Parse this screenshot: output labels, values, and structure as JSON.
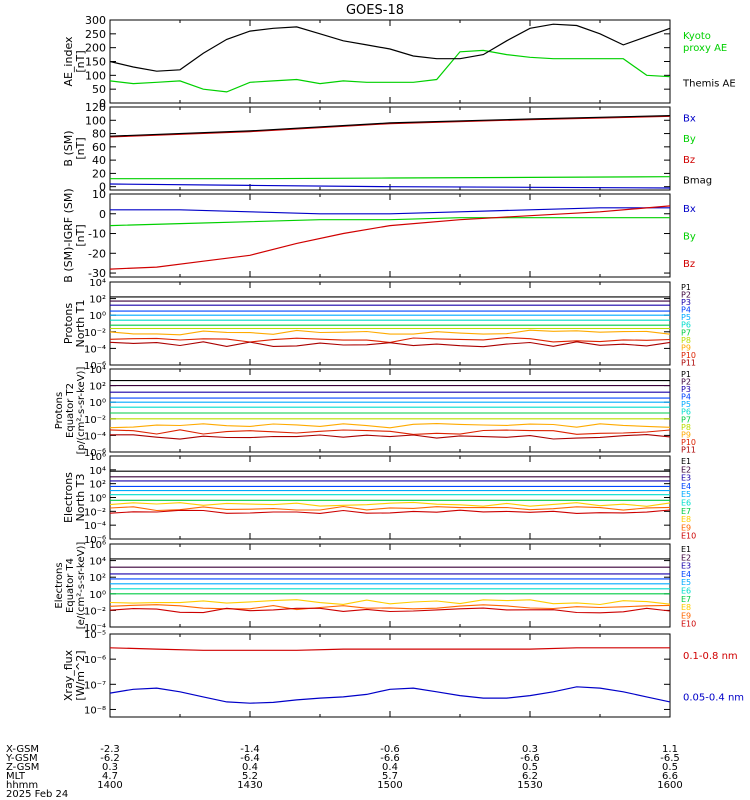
{
  "title": "GOES-18",
  "chart_data": [
    {
      "type": "line",
      "panel": "ae",
      "ylabel": [
        "AE_index",
        "[nT]"
      ],
      "ylim": [
        0,
        300
      ],
      "yticks": [
        0,
        50,
        100,
        150,
        200,
        250,
        300
      ],
      "log": false,
      "series": [
        {
          "name": "Kyoto proxy AE",
          "label_lines": [
            "Kyoto",
            "proxy AE"
          ],
          "color": "#00d000",
          "x": [
            0,
            5,
            10,
            15,
            20,
            25,
            30,
            35,
            40,
            45,
            50,
            55,
            60,
            65,
            70,
            75,
            80,
            85,
            90,
            95,
            100,
            105,
            110,
            115,
            120
          ],
          "y": [
            80,
            70,
            75,
            80,
            50,
            40,
            75,
            80,
            85,
            70,
            80,
            75,
            75,
            75,
            85,
            185,
            190,
            175,
            165,
            160,
            160,
            160,
            160,
            100,
            95
          ]
        },
        {
          "name": "Themis AE",
          "label_lines": [
            "Themis AE"
          ],
          "color": "#000000",
          "x": [
            0,
            5,
            10,
            15,
            20,
            25,
            30,
            35,
            40,
            45,
            50,
            55,
            60,
            65,
            70,
            75,
            80,
            85,
            90,
            95,
            100,
            105,
            110,
            115,
            120
          ],
          "y": [
            150,
            130,
            115,
            120,
            180,
            230,
            260,
            270,
            275,
            250,
            225,
            210,
            195,
            170,
            160,
            160,
            175,
            225,
            270,
            285,
            280,
            250,
            210,
            240,
            270
          ]
        }
      ]
    },
    {
      "type": "line",
      "panel": "b-sm",
      "ylabel": [
        "B (SM)",
        "[nT]"
      ],
      "ylim": [
        -5,
        120
      ],
      "yticks": [
        0,
        20,
        40,
        60,
        80,
        100,
        120
      ],
      "log": false,
      "series": [
        {
          "name": "Bx",
          "color": "#0000c8",
          "x": [
            0,
            30,
            60,
            90,
            120
          ],
          "y": [
            4,
            2,
            0,
            -1,
            -2
          ]
        },
        {
          "name": "By",
          "color": "#00d000",
          "x": [
            0,
            30,
            60,
            90,
            120
          ],
          "y": [
            12,
            12,
            13,
            14,
            15
          ]
        },
        {
          "name": "Bz",
          "color": "#d00000",
          "x": [
            0,
            30,
            60,
            90,
            120
          ],
          "y": [
            75,
            83,
            95,
            101,
            106
          ]
        },
        {
          "name": "Bmag",
          "color": "#000000",
          "x": [
            0,
            30,
            60,
            90,
            120
          ],
          "y": [
            76,
            84,
            96,
            102,
            107
          ]
        }
      ]
    },
    {
      "type": "line",
      "panel": "b-igrf",
      "ylabel": [
        "B (SM)-IGRF (SM)",
        "[nT]"
      ],
      "ylim": [
        -32,
        10
      ],
      "yticks": [
        -30,
        -20,
        -10,
        0,
        10
      ],
      "log": false,
      "series": [
        {
          "name": "Bx",
          "color": "#0000c8",
          "x": [
            0,
            15,
            30,
            45,
            60,
            75,
            90,
            105,
            120
          ],
          "y": [
            2,
            2,
            1,
            0,
            0,
            1,
            2,
            3,
            3
          ]
        },
        {
          "name": "By",
          "color": "#00d000",
          "x": [
            0,
            15,
            30,
            45,
            60,
            75,
            90,
            105,
            120
          ],
          "y": [
            -6,
            -5,
            -4,
            -3,
            -3,
            -2,
            -2,
            -2,
            -2
          ]
        },
        {
          "name": "Bz",
          "color": "#d00000",
          "x": [
            0,
            10,
            20,
            30,
            40,
            50,
            60,
            75,
            90,
            105,
            120
          ],
          "y": [
            -28,
            -27,
            -24,
            -21,
            -15,
            -10,
            -6,
            -3,
            -1,
            1,
            4
          ]
        }
      ]
    },
    {
      "type": "line",
      "panel": "protons-t1",
      "ylabel": [
        "Protons",
        "North T1"
      ],
      "ylim": [
        -6,
        4
      ],
      "yticks": [
        -6,
        -4,
        -2,
        0,
        2,
        4
      ],
      "log": true,
      "channels": [
        "P1",
        "P2",
        "P3",
        "P4",
        "P5",
        "P6",
        "P7",
        "P8",
        "P9",
        "P10",
        "P11"
      ],
      "levels": [
        2.2,
        1.7,
        1.2,
        0.5,
        0.0,
        -0.6,
        -1.2,
        -1.6,
        -2.1,
        -3.0,
        -3.5
      ],
      "colors": [
        "#000000",
        "#3a003a",
        "#1a00aa",
        "#0044ff",
        "#00aaff",
        "#00ddcc",
        "#00cc44",
        "#bbdd00",
        "#ffaa00",
        "#dd2200",
        "#aa0000"
      ]
    },
    {
      "type": "line",
      "panel": "protons-t2",
      "ylabel": [
        "Protons",
        "Equator T2",
        "[p/(cm²-s-sr-keV)]"
      ],
      "ylim": [
        -6,
        4
      ],
      "yticks": [
        -6,
        -4,
        -2,
        0,
        2,
        4
      ],
      "log": true,
      "channels": [
        "P1",
        "P2",
        "P3",
        "P4",
        "P5",
        "P6",
        "P7",
        "P8",
        "P9",
        "P10",
        "P11"
      ],
      "levels": [
        2.6,
        2.0,
        1.2,
        0.5,
        0.0,
        -0.6,
        -1.3,
        -2.0,
        -2.8,
        -3.6,
        -4.2
      ],
      "colors": [
        "#000000",
        "#3a003a",
        "#1a00aa",
        "#0044ff",
        "#00aaff",
        "#00ddcc",
        "#00cc44",
        "#bbdd00",
        "#ffaa00",
        "#dd2200",
        "#aa0000"
      ]
    },
    {
      "type": "line",
      "panel": "electrons-t3",
      "ylabel": [
        "Electrons",
        "North T3"
      ],
      "ylim": [
        -6,
        6
      ],
      "yticks": [
        -6,
        -4,
        -2,
        0,
        2,
        4,
        6
      ],
      "log": true,
      "channels": [
        "E1",
        "E2",
        "E3",
        "E4",
        "E5",
        "E6",
        "E7",
        "E8",
        "E9",
        "E10"
      ],
      "levels": [
        3.8,
        3.0,
        2.4,
        1.6,
        1.0,
        0.4,
        -0.4,
        -1.0,
        -1.6,
        -2.0
      ],
      "colors": [
        "#000000",
        "#3a003a",
        "#1a00aa",
        "#0044ff",
        "#00aaff",
        "#00ddcc",
        "#00cc44",
        "#ffcc00",
        "#ff6600",
        "#cc0000"
      ]
    },
    {
      "type": "line",
      "panel": "electrons-t4",
      "ylabel": [
        "Electrons",
        "Equator T4",
        "[e/(cm²-s-sr-keV)]"
      ],
      "ylim": [
        -4,
        6
      ],
      "yticks": [
        -4,
        -2,
        0,
        2,
        4,
        6
      ],
      "log": true,
      "channels": [
        "E1",
        "E2",
        "E3",
        "E4",
        "E5",
        "E6",
        "E7",
        "E8",
        "E9",
        "E10"
      ],
      "levels": [
        4.2,
        3.2,
        2.4,
        1.8,
        1.2,
        0.6,
        0.0,
        -1.0,
        -1.6,
        -2.0
      ],
      "colors": [
        "#000000",
        "#3a003a",
        "#1a00aa",
        "#0044ff",
        "#00aaff",
        "#00ddcc",
        "#00cc44",
        "#ffcc00",
        "#ff6600",
        "#cc0000"
      ]
    },
    {
      "type": "line",
      "panel": "xray",
      "ylabel": [
        "Xray_flux",
        "[W/m^2]"
      ],
      "ylim": [
        -8.3,
        -5
      ],
      "yticks": [
        -8,
        -7,
        -6,
        -5
      ],
      "log": true,
      "series": [
        {
          "name": "0.1-0.8 nm",
          "color": "#d00000",
          "x": [
            0,
            10,
            20,
            30,
            40,
            50,
            60,
            70,
            80,
            90,
            100,
            110,
            120
          ],
          "y": [
            -5.55,
            -5.6,
            -5.65,
            -5.65,
            -5.65,
            -5.6,
            -5.6,
            -5.6,
            -5.6,
            -5.6,
            -5.55,
            -5.55,
            -5.55
          ]
        },
        {
          "name": "0.05-0.4 nm",
          "color": "#0000c8",
          "x": [
            0,
            5,
            10,
            15,
            20,
            25,
            30,
            35,
            40,
            45,
            50,
            55,
            60,
            65,
            70,
            75,
            80,
            85,
            90,
            95,
            100,
            105,
            110,
            115,
            120
          ],
          "y": [
            -7.35,
            -7.2,
            -7.15,
            -7.3,
            -7.5,
            -7.7,
            -7.75,
            -7.72,
            -7.62,
            -7.55,
            -7.5,
            -7.4,
            -7.2,
            -7.15,
            -7.3,
            -7.45,
            -7.55,
            -7.55,
            -7.45,
            -7.3,
            -7.1,
            -7.15,
            -7.3,
            -7.5,
            -7.7
          ]
        }
      ]
    }
  ],
  "xaxis": {
    "row_labels": [
      "X-GSM",
      "Y-GSM",
      "Z-GSM",
      "MLT",
      "hhmm"
    ],
    "columns": [
      [
        "-2.3",
        "-6.2",
        "0.3",
        "4.7",
        "1400"
      ],
      [
        "-1.4",
        "-6.4",
        "0.4",
        "5.2",
        "1430"
      ],
      [
        "-0.6",
        "-6.6",
        "0.4",
        "5.7",
        "1500"
      ],
      [
        "0.3",
        "-6.6",
        "0.5",
        "6.2",
        "1530"
      ],
      [
        "1.1",
        "-6.5",
        "0.5",
        "6.6",
        "1600"
      ]
    ],
    "date": "2025 Feb 24"
  }
}
